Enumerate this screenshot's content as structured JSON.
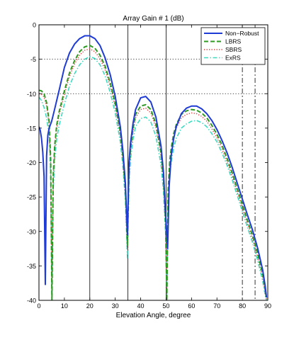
{
  "chart_data": {
    "type": "line",
    "title": "Array Gain # 1 (dB)",
    "xlabel": "Elevation Angle, degree",
    "ylabel": "",
    "xlim": [
      0,
      90
    ],
    "ylim": [
      -40,
      0
    ],
    "x_ticks": [
      0,
      10,
      20,
      30,
      40,
      50,
      60,
      70,
      80,
      90
    ],
    "y_ticks": [
      0,
      -5,
      -10,
      -15,
      -20,
      -25,
      -30,
      -35,
      -40
    ],
    "legend_position": "top-right",
    "grid": false,
    "reference_lines": {
      "vertical_solid": [
        20,
        35,
        50
      ],
      "vertical_dashdot": [
        80,
        85
      ],
      "horizontal_dotted": [
        -5,
        -10
      ]
    },
    "series": [
      {
        "name": "Non−Robust",
        "color": "#1f3bd6",
        "style": "solid",
        "x": [
          0,
          0.5,
          1.0,
          1.5,
          2.0,
          2.5,
          3.0,
          3.5,
          4.0,
          5,
          6,
          8,
          10,
          12,
          14,
          16,
          18,
          20,
          22,
          24,
          26,
          28,
          30,
          32,
          33,
          34,
          34.8,
          35.4,
          36,
          37,
          38,
          40,
          42,
          44,
          46,
          48,
          49,
          49.8,
          50.6,
          51.2,
          52,
          53,
          54,
          56,
          58,
          60,
          62,
          64,
          66,
          68,
          70,
          72,
          74,
          76,
          78,
          80,
          82,
          84,
          86,
          88,
          89,
          89.5
        ],
        "y": [
          -14.8,
          -15.3,
          -16.5,
          -18.5,
          -22.0,
          -37.7,
          -19.0,
          -16.0,
          -15.0,
          -14.0,
          -12.5,
          -9.4,
          -6.2,
          -4.1,
          -2.8,
          -2.0,
          -1.6,
          -1.6,
          -2.0,
          -3.0,
          -4.8,
          -7.2,
          -10.4,
          -14.8,
          -18.2,
          -23.0,
          -30.5,
          -20.0,
          -17.2,
          -14.3,
          -12.3,
          -10.6,
          -10.4,
          -11.2,
          -13.4,
          -17.6,
          -21.5,
          -27.5,
          -32.5,
          -23.5,
          -19.0,
          -16.5,
          -14.8,
          -12.9,
          -12.1,
          -11.8,
          -11.8,
          -12.2,
          -12.9,
          -13.9,
          -15.2,
          -16.8,
          -18.6,
          -20.7,
          -23.0,
          -25.3,
          -27.6,
          -29.8,
          -32.4,
          -35.6,
          -38.0,
          -39.6
        ]
      },
      {
        "name": "LBRS",
        "color": "#2e9a22",
        "style": "dashed",
        "x": [
          0,
          1,
          2,
          3,
          4,
          4.6,
          5.1,
          5.6,
          6.2,
          7,
          8,
          10,
          12,
          14,
          16,
          18,
          20,
          22,
          24,
          26,
          28,
          30,
          32,
          33,
          34,
          34.8,
          35.4,
          36,
          37,
          38,
          40,
          42,
          44,
          46,
          48,
          49,
          49.8,
          50.3,
          50.8,
          51.5,
          52.2,
          53,
          54,
          56,
          58,
          60,
          62,
          64,
          66,
          68,
          70,
          72,
          74,
          76,
          78,
          80,
          82,
          84,
          86,
          88,
          89,
          89.5
        ],
        "y": [
          -9.5,
          -9.6,
          -10.0,
          -11.3,
          -14.0,
          -19.5,
          -40.0,
          -22.0,
          -17.5,
          -14.5,
          -12.5,
          -9.6,
          -7.0,
          -5.2,
          -3.9,
          -3.2,
          -3.0,
          -3.4,
          -4.4,
          -6.0,
          -8.4,
          -11.4,
          -15.5,
          -19.0,
          -24.0,
          -32.0,
          -21.5,
          -18.0,
          -15.0,
          -13.0,
          -11.8,
          -11.6,
          -12.3,
          -14.4,
          -18.5,
          -22.5,
          -28.5,
          -40.0,
          -24.0,
          -19.5,
          -17.5,
          -15.8,
          -14.5,
          -13.0,
          -12.5,
          -12.3,
          -12.4,
          -12.8,
          -13.5,
          -14.6,
          -15.9,
          -17.5,
          -19.4,
          -21.5,
          -23.8,
          -26.1,
          -28.4,
          -30.6,
          -33.2,
          -36.2,
          -38.4,
          -39.8
        ]
      },
      {
        "name": "SBRS",
        "color": "#e03a3a",
        "style": "dotted",
        "x": [
          0,
          1,
          2,
          3,
          4,
          4.6,
          5.1,
          5.6,
          6.2,
          7,
          8,
          10,
          12,
          14,
          16,
          18,
          20,
          22,
          24,
          26,
          28,
          30,
          32,
          33,
          34,
          34.8,
          35.4,
          36,
          37,
          38,
          40,
          42,
          44,
          46,
          48,
          49,
          49.8,
          50.3,
          50.8,
          51.5,
          52.2,
          53,
          54,
          56,
          58,
          60,
          62,
          64,
          66,
          68,
          70,
          72,
          74,
          76,
          78,
          80,
          82,
          84,
          86,
          88,
          89,
          89.5
        ],
        "y": [
          -10.0,
          -10.1,
          -10.5,
          -11.8,
          -14.5,
          -20.0,
          -40.0,
          -22.5,
          -18.0,
          -15.0,
          -13.0,
          -10.1,
          -7.5,
          -5.7,
          -4.4,
          -3.7,
          -3.5,
          -3.9,
          -4.9,
          -6.5,
          -8.9,
          -11.9,
          -16.0,
          -19.5,
          -24.5,
          -32.5,
          -22.0,
          -18.5,
          -15.5,
          -13.5,
          -12.3,
          -12.1,
          -12.8,
          -14.9,
          -19.0,
          -23.0,
          -29.0,
          -40.0,
          -24.5,
          -20.0,
          -18.0,
          -16.3,
          -15.0,
          -13.5,
          -13.0,
          -12.8,
          -12.9,
          -13.3,
          -14.0,
          -15.1,
          -16.4,
          -18.0,
          -19.9,
          -22.0,
          -24.3,
          -26.6,
          -28.9,
          -31.1,
          -33.7,
          -36.7,
          -38.9,
          -39.9
        ]
      },
      {
        "name": "ExRS",
        "color": "#3ddbc0",
        "style": "dashdot",
        "x": [
          0,
          1,
          2,
          3,
          4,
          4.6,
          5.1,
          5.6,
          6.2,
          7,
          8,
          10,
          12,
          14,
          16,
          18,
          20,
          22,
          24,
          26,
          28,
          30,
          32,
          33,
          34,
          34.8,
          35.4,
          36,
          37,
          38,
          40,
          42,
          44,
          46,
          48,
          49,
          49.8,
          50.3,
          50.8,
          51.5,
          52.2,
          53,
          54,
          56,
          58,
          60,
          62,
          64,
          66,
          68,
          70,
          72,
          74,
          76,
          78,
          80,
          82,
          84,
          86,
          88,
          89,
          89.5
        ],
        "y": [
          -10.5,
          -11.0,
          -12.0,
          -13.5,
          -16.0,
          -21.5,
          -40.0,
          -24.0,
          -19.5,
          -16.5,
          -14.5,
          -11.5,
          -8.9,
          -7.1,
          -5.8,
          -5.0,
          -4.6,
          -4.9,
          -5.8,
          -7.4,
          -9.8,
          -12.8,
          -17.0,
          -20.5,
          -25.5,
          -34.0,
          -23.0,
          -19.5,
          -16.6,
          -14.8,
          -13.6,
          -13.4,
          -14.1,
          -16.2,
          -20.3,
          -24.3,
          -30.3,
          -40.0,
          -26.0,
          -21.5,
          -19.5,
          -17.8,
          -16.5,
          -15.0,
          -14.4,
          -14.0,
          -13.9,
          -14.2,
          -14.8,
          -15.8,
          -17.0,
          -18.6,
          -20.4,
          -22.5,
          -24.8,
          -27.1,
          -29.4,
          -31.6,
          -34.2,
          -37.2,
          -39.3,
          -40.0
        ]
      }
    ]
  }
}
